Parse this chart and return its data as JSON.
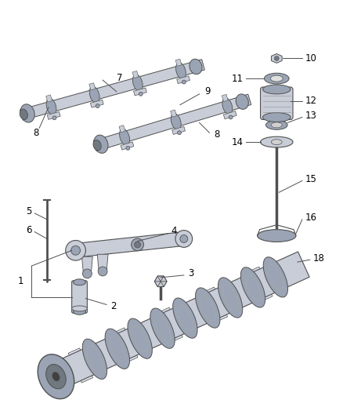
{
  "bg_color": "#ffffff",
  "part_color": "#c8cdd8",
  "part_color2": "#9aa4b4",
  "part_dark": "#707880",
  "part_outline": "#505050",
  "label_color": "#000000",
  "line_color": "#606060",
  "figsize": [
    4.38,
    5.33
  ],
  "dpi": 100
}
